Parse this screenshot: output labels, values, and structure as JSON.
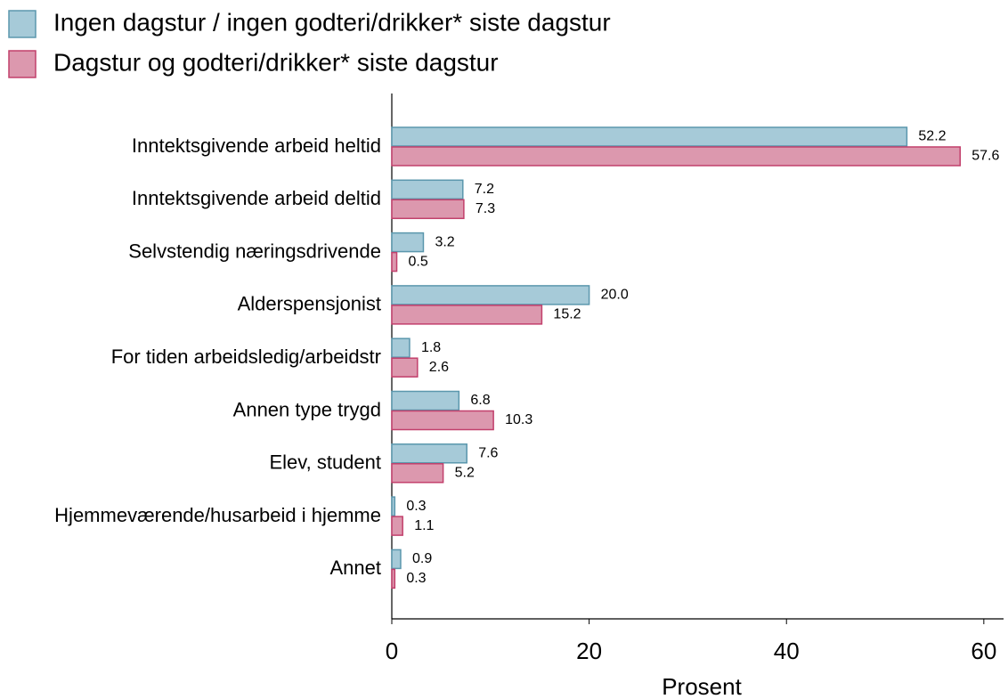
{
  "chart_data": {
    "type": "barh",
    "categories": [
      "Inntektsgivende arbeid heltid",
      "Inntektsgivende arbeid deltid",
      "Selvstendig næringsdrivende",
      "Alderspensjonist",
      "For tiden arbeidsledig/arbeidstr",
      "Annen type trygd",
      "Elev, student",
      "Hjemmeværende/husarbeid i hjemme",
      "Annet"
    ],
    "series": [
      {
        "name": "Ingen dagstur / ingen godteri/drikker* siste dagstur",
        "color": "#a6cad8",
        "values": [
          52.2,
          7.2,
          3.2,
          20.0,
          1.8,
          6.8,
          7.6,
          0.3,
          0.9
        ],
        "value_labels": [
          "52.2",
          "7.2",
          "3.2",
          "20.0",
          "1.8",
          "6.8",
          "7.6",
          "0.3",
          "0.9"
        ]
      },
      {
        "name": "Dagstur og godteri/drikker* siste dagstur",
        "color": "#dc98ae",
        "values": [
          57.6,
          7.3,
          0.5,
          15.2,
          2.6,
          10.3,
          5.2,
          1.1,
          0.3
        ],
        "value_labels": [
          "57.6",
          "7.3",
          "0.5",
          "15.2",
          "2.6",
          "10.3",
          "5.2",
          "1.1",
          "0.3"
        ]
      }
    ],
    "xlabel": "Prosent",
    "xlim": [
      0,
      62
    ],
    "xticks": [
      0,
      20,
      40,
      60
    ]
  }
}
